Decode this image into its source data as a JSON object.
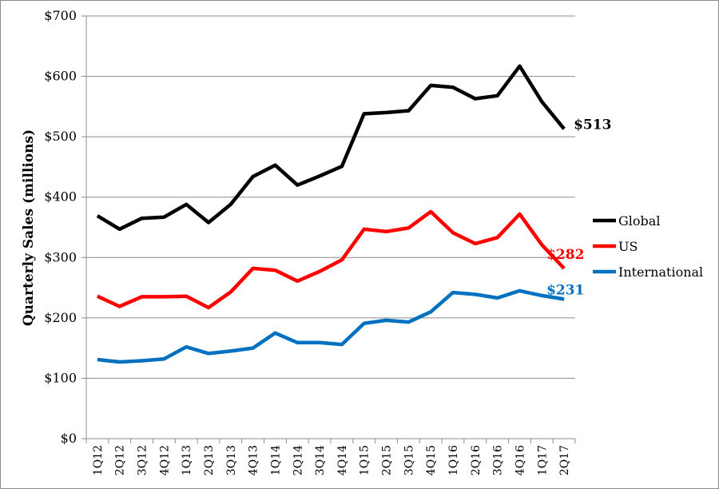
{
  "chart_data": {
    "type": "line",
    "ylabel": "Quarterly Sales (millions)",
    "ylim": [
      0,
      700
    ],
    "ytick_values": [
      0,
      100,
      200,
      300,
      400,
      500,
      600,
      700
    ],
    "ytick_labels": [
      "$0",
      "$100",
      "$200",
      "$300",
      "$400",
      "$500",
      "$600",
      "$700"
    ],
    "grid": true,
    "legend_position": "right",
    "categories": [
      "1Q12",
      "2Q12",
      "3Q12",
      "4Q12",
      "1Q13",
      "2Q13",
      "3Q13",
      "4Q13",
      "1Q14",
      "2Q14",
      "3Q14",
      "4Q14",
      "1Q15",
      "2Q15",
      "3Q15",
      "4Q15",
      "1Q16",
      "2Q16",
      "3Q16",
      "4Q16",
      "1Q17",
      "2Q17"
    ],
    "series": [
      {
        "name": "Global",
        "color": "#000000",
        "values": [
          369,
          347,
          365,
          367,
          388,
          358,
          388,
          434,
          453,
          420,
          435,
          451,
          538,
          540,
          543,
          585,
          582,
          563,
          568,
          617,
          558,
          513
        ],
        "end_label": "$513"
      },
      {
        "name": "US",
        "color": "#ff0000",
        "values": [
          236,
          219,
          235,
          235,
          236,
          217,
          243,
          282,
          279,
          261,
          277,
          296,
          347,
          343,
          349,
          376,
          341,
          323,
          333,
          372,
          321,
          282
        ],
        "end_label": "$282"
      },
      {
        "name": "International",
        "color": "#0070c0",
        "values": [
          131,
          127,
          129,
          132,
          152,
          141,
          145,
          150,
          175,
          159,
          159,
          156,
          191,
          196,
          193,
          210,
          242,
          239,
          233,
          245,
          237,
          231
        ],
        "end_label": "$231"
      }
    ]
  }
}
